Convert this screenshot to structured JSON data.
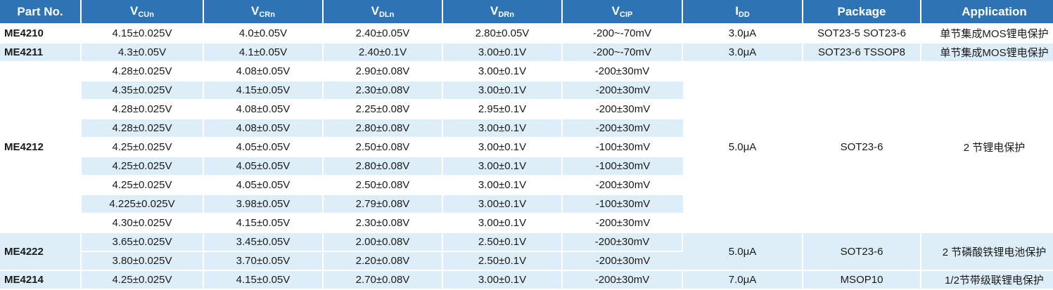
{
  "headers": {
    "part": "Part No.",
    "vcu": {
      "main": "V",
      "sub": "CUn"
    },
    "vcr": {
      "main": "V",
      "sub": "CRn"
    },
    "vdl": {
      "main": "V",
      "sub": "DLn"
    },
    "vdr": {
      "main": "V",
      "sub": "DRn"
    },
    "vcip": {
      "main": "V",
      "sub": "CIP"
    },
    "idd": {
      "main": "I",
      "sub": "DD"
    },
    "package": "Package",
    "application": "Application"
  },
  "parts": {
    "me4210": {
      "name": "ME4210",
      "idd": "3.0μA",
      "package": "SOT23-5 SOT23-6",
      "application": "单节集成MOS锂电保护",
      "rows": [
        [
          "4.15±0.025V",
          "4.0±0.05V",
          "2.40±0.05V",
          "2.80±0.05V",
          "-200~-70mV"
        ]
      ]
    },
    "me4211": {
      "name": "ME4211",
      "idd": "3.0μA",
      "package": "SOT23-6 TSSOP8",
      "application": "单节集成MOS锂电保护",
      "rows": [
        [
          "4.3±0.05V",
          "4.1±0.05V",
          "2.40±0.1V",
          "3.00±0.1V",
          "-200~-70mV"
        ]
      ]
    },
    "me4212": {
      "name": "ME4212",
      "idd": "5.0μA",
      "package": "SOT23-6",
      "application": "2 节锂电保护",
      "rows": [
        [
          "4.28±0.025V",
          "4.08±0.05V",
          "2.90±0.08V",
          "3.00±0.1V",
          "-200±30mV"
        ],
        [
          "4.35±0.025V",
          "4.15±0.05V",
          "2.30±0.08V",
          "3.00±0.1V",
          "-200±30mV"
        ],
        [
          "4.28±0.025V",
          "4.08±0.05V",
          "2.25±0.08V",
          "2.95±0.1V",
          "-200±30mV"
        ],
        [
          "4.28±0.025V",
          "4.08±0.05V",
          "2.80±0.08V",
          "3.00±0.1V",
          "-200±30mV"
        ],
        [
          "4.25±0.025V",
          "4.05±0.05V",
          "2.50±0.08V",
          "3.00±0.1V",
          "-100±30mV"
        ],
        [
          "4.25±0.025V",
          "4.05±0.05V",
          "2.80±0.08V",
          "3.00±0.1V",
          "-100±30mV"
        ],
        [
          "4.25±0.025V",
          "4.05±0.05V",
          "2.50±0.08V",
          "3.00±0.1V",
          "-200±30mV"
        ],
        [
          "4.225±0.025V",
          "3.98±0.05V",
          "2.79±0.08V",
          "3.00±0.1V",
          "-100±30mV"
        ],
        [
          "4.30±0.025V",
          "4.15±0.05V",
          "2.30±0.08V",
          "3.00±0.1V",
          "-200±30mV"
        ]
      ]
    },
    "me4222": {
      "name": "ME4222",
      "idd": "5.0μA",
      "package": "SOT23-6",
      "application": "2 节磷酸铁锂电池保护",
      "rows": [
        [
          "3.65±0.025V",
          "3.45±0.05V",
          "2.00±0.08V",
          "2.50±0.1V",
          "-200±30mV"
        ],
        [
          "3.80±0.025V",
          "3.70±0.05V",
          "2.20±0.08V",
          "2.50±0.1V",
          "-200±30mV"
        ]
      ]
    },
    "me4214": {
      "name": "ME4214",
      "idd": "7.0μA",
      "package": "MSOP10",
      "application": "1/2节带级联锂电保护",
      "rows": [
        [
          "4.25±0.025V",
          "4.15±0.05V",
          "2.70±0.08V",
          "3.00±0.1V",
          "-200±30mV"
        ]
      ]
    }
  }
}
